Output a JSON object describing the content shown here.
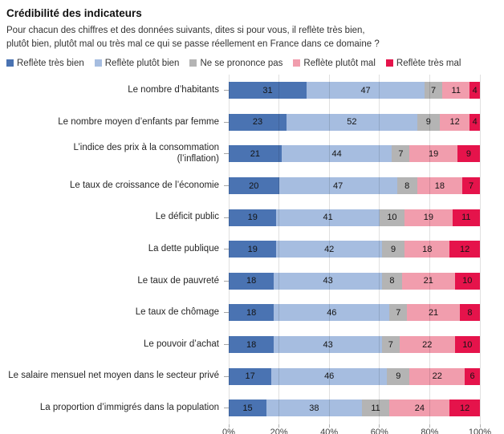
{
  "header": {
    "title": "Crédibilité des indicateurs",
    "subtitle_line1": "Pour chacun des chiffres et des données suivants, dites si pour vous, il reflète très bien,",
    "subtitle_line2": "plutôt bien, plutôt mal ou très mal ce qui se passe réellement en France dans ce domaine ?"
  },
  "chart_data": {
    "type": "bar",
    "orientation": "horizontal",
    "stacked": true,
    "unit": "%",
    "title": "Crédibilité des indicateurs",
    "grid": true,
    "legend_position": "top",
    "categories": [
      "Le nombre d’habitants",
      "Le nombre moyen d’enfants par femme",
      "L’indice des prix à la consommation\n(l’inflation)",
      "Le taux de croissance de l’économie",
      "Le déficit public",
      "La dette publique",
      "Le taux de pauvreté",
      "Le taux de chômage",
      "Le pouvoir d’achat",
      "Le salaire mensuel net moyen dans le secteur privé",
      "La proportion d’immigrés dans la population"
    ],
    "series": [
      {
        "name": "Reflète très bien",
        "color": "#4a73b2",
        "values": [
          31,
          23,
          21,
          20,
          19,
          19,
          18,
          18,
          18,
          17,
          15
        ]
      },
      {
        "name": "Reflète plutôt bien",
        "color": "#a6bde0",
        "values": [
          47,
          52,
          44,
          47,
          41,
          42,
          43,
          46,
          43,
          46,
          38
        ]
      },
      {
        "name": "Ne se prononce pas",
        "color": "#b4b4b4",
        "values": [
          7,
          9,
          7,
          8,
          10,
          9,
          8,
          7,
          7,
          9,
          11
        ]
      },
      {
        "name": "Reflète plutôt mal",
        "color": "#f19dad",
        "values": [
          11,
          12,
          19,
          18,
          19,
          18,
          21,
          21,
          22,
          22,
          24
        ]
      },
      {
        "name": "Reflète très mal",
        "color": "#e5134b",
        "values": [
          4,
          4,
          9,
          7,
          11,
          12,
          10,
          8,
          10,
          6,
          12
        ]
      }
    ],
    "x_axis": {
      "min": 0,
      "max": 100,
      "tick_labels": [
        "0%",
        "20%",
        "40%",
        "60%",
        "80%",
        "100%"
      ],
      "tick_values": [
        0,
        20,
        40,
        60,
        80,
        100
      ]
    },
    "bar_value_labels": true
  }
}
